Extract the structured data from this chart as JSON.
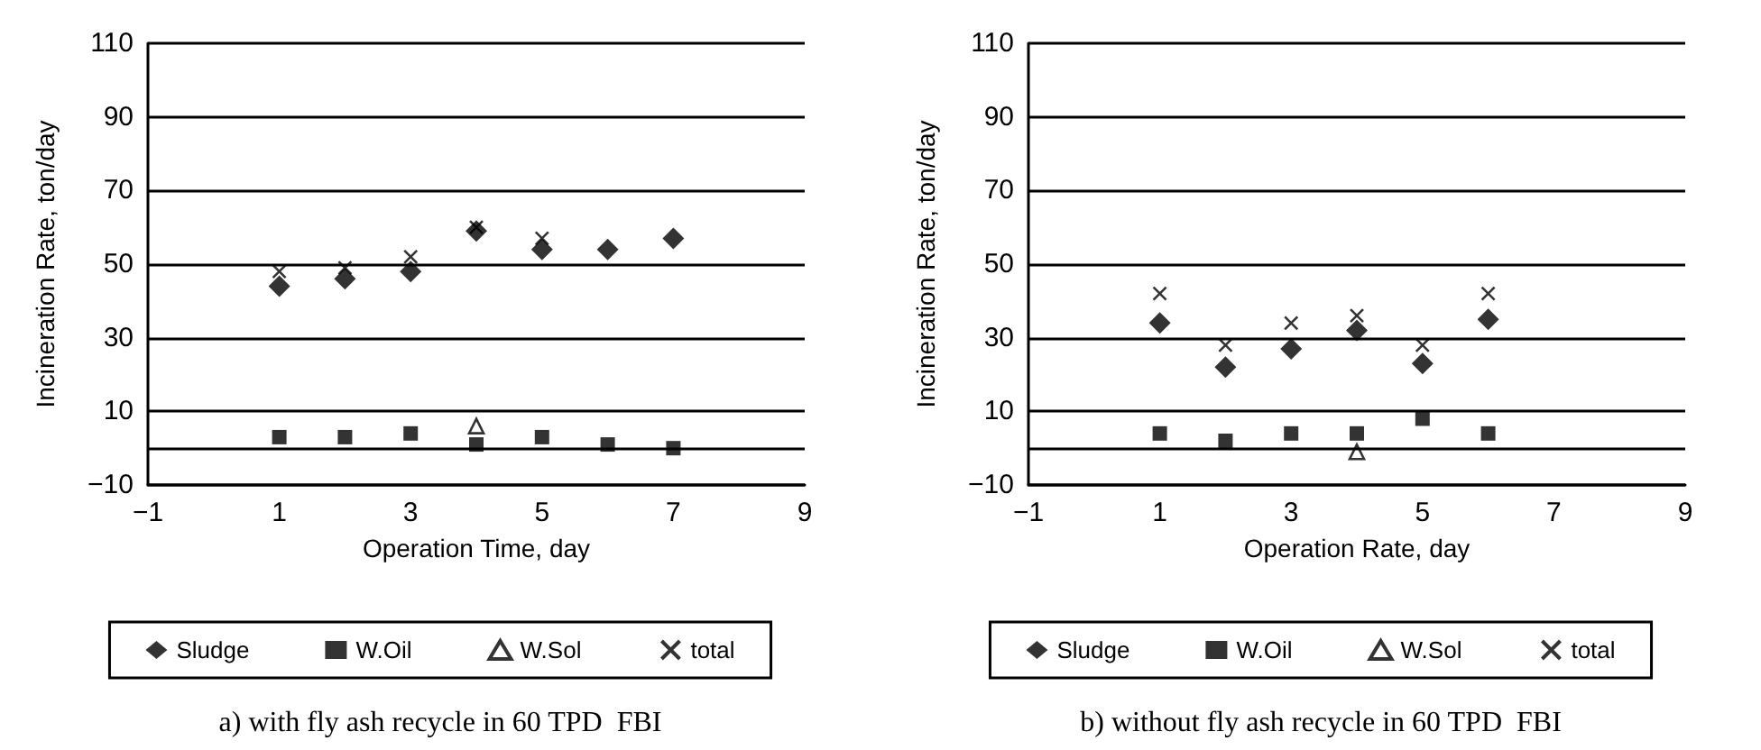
{
  "chart_data": [
    {
      "type": "scatter",
      "title": "a) with fly ash recycle in 60 TPD  FBI",
      "xlabel": "Operation Time, day",
      "ylabel": "Incineration Rate, ton/day",
      "x": [
        1,
        2,
        3,
        4,
        5,
        6,
        7
      ],
      "series": [
        {
          "name": "Sludge",
          "color": "#000000",
          "marker": "diamond",
          "values": [
            44,
            46,
            48,
            59,
            54,
            54,
            57
          ]
        },
        {
          "name": "W.Oil",
          "color": "#000000",
          "marker": "square",
          "values": [
            3,
            3,
            4,
            1,
            3,
            1,
            0
          ]
        },
        {
          "name": "W.Sol",
          "color": "#000000",
          "marker": "triangle",
          "values": [
            null,
            null,
            null,
            6,
            null,
            null,
            null
          ]
        },
        {
          "name": "total",
          "color": "#000000",
          "marker": "cross",
          "values": [
            48,
            49,
            52,
            60,
            57,
            null,
            null
          ]
        }
      ],
      "xlim": [
        -1,
        9
      ],
      "xticks": [
        -1,
        1,
        3,
        5,
        7,
        9
      ],
      "ylim": [
        -10,
        110
      ],
      "yticks": [
        -10,
        10,
        30,
        50,
        70,
        90,
        110
      ],
      "ref_lines": [
        {
          "axis": "y",
          "value": 0,
          "label": null
        }
      ],
      "grid": "y",
      "legend": "bottom"
    },
    {
      "type": "scatter",
      "title": "b) without fly ash recycle in 60 TPD  FBI",
      "xlabel": "Operation Rate, day",
      "ylabel": "Incineration Rate, ton/day",
      "x": [
        1,
        2,
        3,
        4,
        5,
        6
      ],
      "series": [
        {
          "name": "Sludge",
          "color": "#000000",
          "marker": "diamond",
          "values": [
            34,
            22,
            27,
            32,
            23,
            35
          ]
        },
        {
          "name": "W.Oil",
          "color": "#000000",
          "marker": "square",
          "values": [
            4,
            2,
            4,
            4,
            8,
            4
          ]
        },
        {
          "name": "W.Sol",
          "color": "#000000",
          "marker": "triangle",
          "values": [
            null,
            null,
            null,
            -1,
            null,
            null
          ]
        },
        {
          "name": "total",
          "color": "#000000",
          "marker": "cross",
          "values": [
            42,
            28,
            34,
            36,
            28,
            42
          ]
        }
      ],
      "xlim": [
        -1,
        9
      ],
      "xticks": [
        -1,
        1,
        3,
        5,
        7,
        9
      ],
      "ylim": [
        -10,
        110
      ],
      "yticks": [
        -10,
        10,
        30,
        50,
        70,
        90,
        110
      ],
      "ref_lines": [
        {
          "axis": "y",
          "value": 0,
          "label": null
        }
      ],
      "grid": "y",
      "legend": "bottom"
    }
  ]
}
